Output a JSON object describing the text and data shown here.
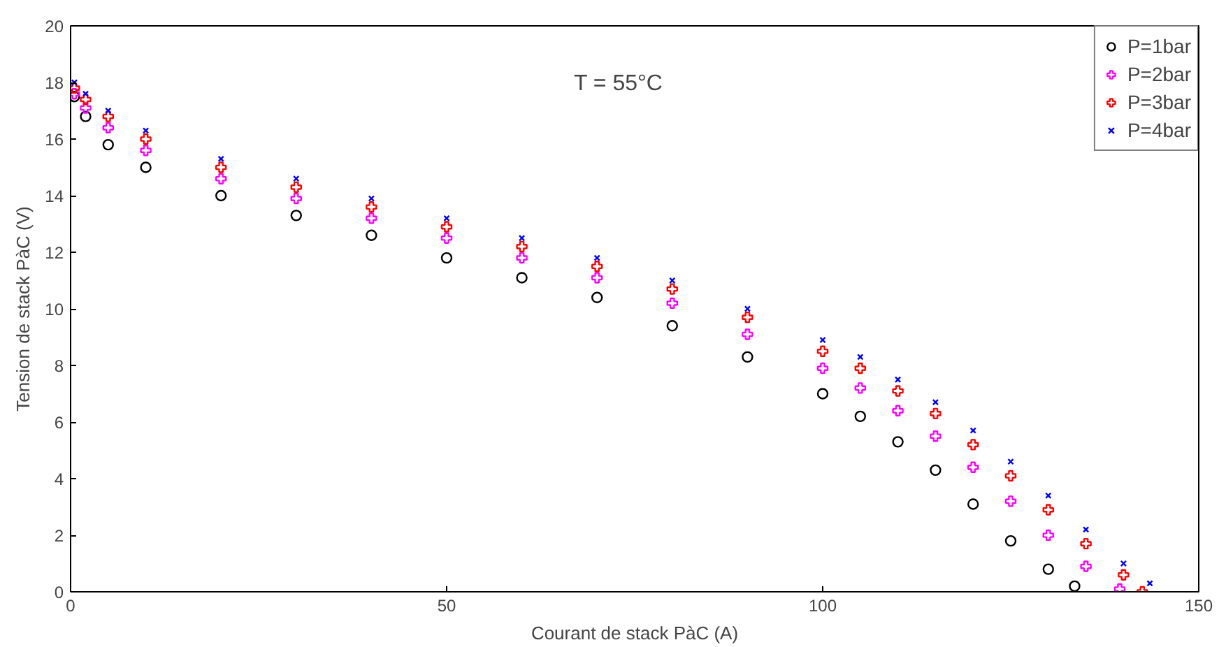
{
  "chart_data": {
    "type": "scatter",
    "xlabel": "Courant de stack PàC (A)",
    "ylabel": "Tension de stack PàC (V)",
    "annotations": [
      "T = 55°C"
    ],
    "xlim": [
      0,
      150
    ],
    "xticks": [
      0,
      50,
      100,
      150
    ],
    "ylim": [
      0,
      20
    ],
    "yticks": [
      0,
      2,
      4,
      6,
      8,
      10,
      12,
      14,
      16,
      18,
      20
    ],
    "grid": false,
    "legend": "top right",
    "series": [
      {
        "name": "P=1bar",
        "color": "#000000",
        "marker": "circle",
        "x": [
          0.5,
          2,
          5,
          10,
          20,
          30,
          40,
          50,
          60,
          70,
          80,
          90,
          100,
          105,
          110,
          115,
          120,
          125,
          130,
          133.5
        ],
        "values": [
          17.5,
          16.8,
          15.8,
          15.0,
          14.0,
          13.3,
          12.6,
          11.8,
          11.1,
          10.4,
          9.4,
          8.3,
          7.0,
          6.2,
          5.3,
          4.3,
          3.1,
          1.8,
          0.8,
          0.2
        ]
      },
      {
        "name": "P=2bar",
        "color": "#ff00ff",
        "marker": "plus",
        "x": [
          0.5,
          2,
          5,
          10,
          20,
          30,
          40,
          50,
          60,
          70,
          80,
          90,
          100,
          105,
          110,
          115,
          120,
          125,
          130,
          135,
          139.5
        ],
        "values": [
          17.6,
          17.1,
          16.4,
          15.6,
          14.6,
          13.9,
          13.2,
          12.5,
          11.8,
          11.1,
          10.2,
          9.1,
          7.9,
          7.2,
          6.4,
          5.5,
          4.4,
          3.2,
          2.0,
          0.9,
          0.1
        ]
      },
      {
        "name": "P=3bar",
        "color": "#ff0000",
        "marker": "plus",
        "x": [
          0.5,
          2,
          5,
          10,
          20,
          30,
          40,
          50,
          60,
          70,
          80,
          90,
          100,
          105,
          110,
          115,
          120,
          125,
          130,
          135,
          140,
          142.5
        ],
        "values": [
          17.8,
          17.4,
          16.8,
          16.0,
          15.0,
          14.3,
          13.6,
          12.9,
          12.2,
          11.5,
          10.7,
          9.7,
          8.5,
          7.9,
          7.1,
          6.3,
          5.2,
          4.1,
          2.9,
          1.7,
          0.6,
          0.0
        ]
      },
      {
        "name": "P=4bar",
        "color": "#0000ff",
        "marker": "x",
        "x": [
          0.5,
          2,
          5,
          10,
          20,
          30,
          40,
          50,
          60,
          70,
          80,
          90,
          100,
          105,
          110,
          115,
          120,
          125,
          130,
          135,
          140,
          143.5
        ],
        "values": [
          18.0,
          17.6,
          17.0,
          16.3,
          15.3,
          14.6,
          13.9,
          13.2,
          12.5,
          11.8,
          11.0,
          10.0,
          8.9,
          8.3,
          7.5,
          6.7,
          5.7,
          4.6,
          3.4,
          2.2,
          1.0,
          0.3
        ]
      }
    ]
  }
}
